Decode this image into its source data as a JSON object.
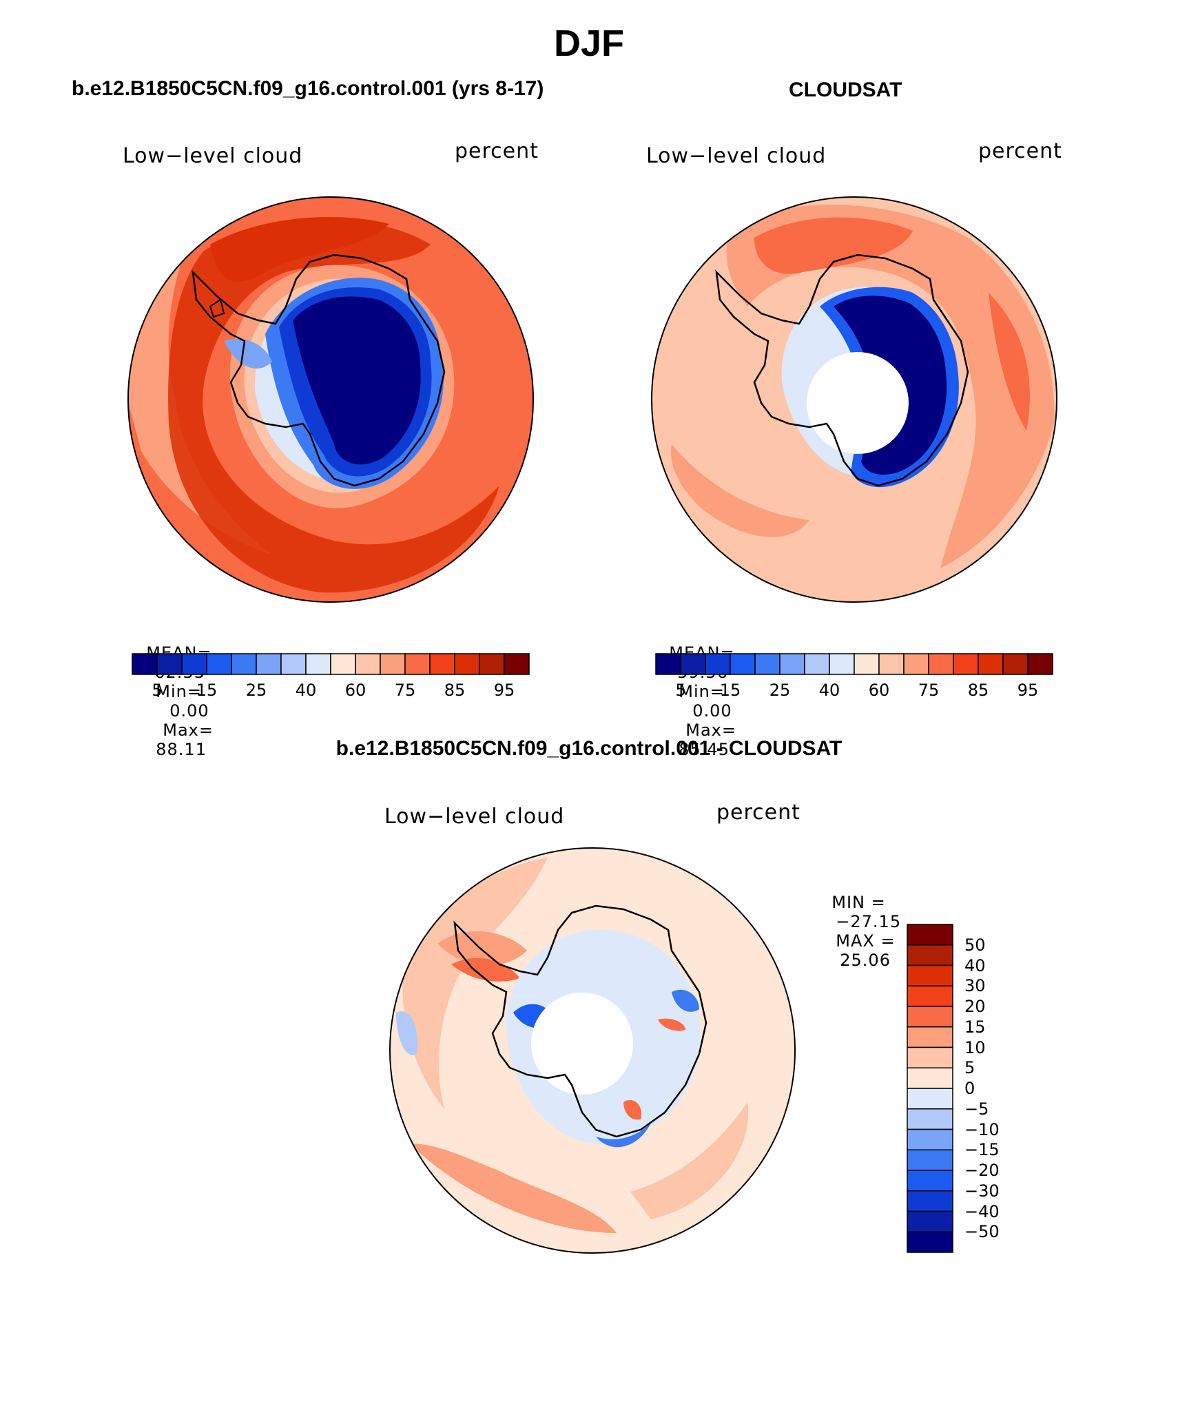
{
  "figure": {
    "title": "DJF",
    "panels": [
      {
        "id": "model",
        "title": "b.e12.B1850C5CN.f09_g16.control.001 (yrs 8-17)",
        "label_left": "Low−level cloud",
        "label_right": "percent",
        "stats": {
          "mean_label": "MEAN=",
          "mean": "62.33",
          "min_label": "Min=",
          "min": "0.00",
          "max_label": "Max=",
          "max": "88.11"
        }
      },
      {
        "id": "obs",
        "title": "CLOUDSAT",
        "label_left": "Low−level cloud",
        "label_right": "percent",
        "stats": {
          "mean_label": "MEAN=",
          "mean": "59.56",
          "min_label": "Min=",
          "min": "0.00",
          "max_label": "Max=",
          "max": "85.45"
        }
      },
      {
        "id": "diff",
        "title": "b.e12.B1850C5CN.f09_g16.control.001 - CLOUDSAT",
        "label_left": "Low−level cloud",
        "label_right": "percent",
        "stats": {
          "min_label": "MIN =",
          "min": "−27.15",
          "max_label": "MAX =",
          "max": "25.06"
        }
      }
    ]
  },
  "colorbar_abs": {
    "colors": [
      "#02007f",
      "#0a1ea6",
      "#0d3bd3",
      "#1c5bf2",
      "#3c7af5",
      "#7aa4f8",
      "#b0c9f9",
      "#dde9fa",
      "#fee7d7",
      "#fdc5a9",
      "#fb9f7c",
      "#f86b44",
      "#f3421a",
      "#dc2f05",
      "#b01e03",
      "#790000"
    ],
    "tick_labels": [
      "5",
      "15",
      "25",
      "40",
      "60",
      "75",
      "85",
      "95"
    ]
  },
  "colorbar_diff": {
    "colors": [
      "#790000",
      "#b01e03",
      "#dc2f05",
      "#f3421a",
      "#f86b44",
      "#fb9f7c",
      "#fdc5a9",
      "#fee7d7",
      "#dde9fa",
      "#b0c9f9",
      "#7aa4f8",
      "#3c7af5",
      "#1c5bf2",
      "#0d3bd3",
      "#0a1ea6",
      "#02007f"
    ],
    "tick_labels": [
      "50",
      "40",
      "30",
      "20",
      "15",
      "10",
      "5",
      "0",
      "−5",
      "−10",
      "−15",
      "−20",
      "−30",
      "−40",
      "−50"
    ]
  }
}
